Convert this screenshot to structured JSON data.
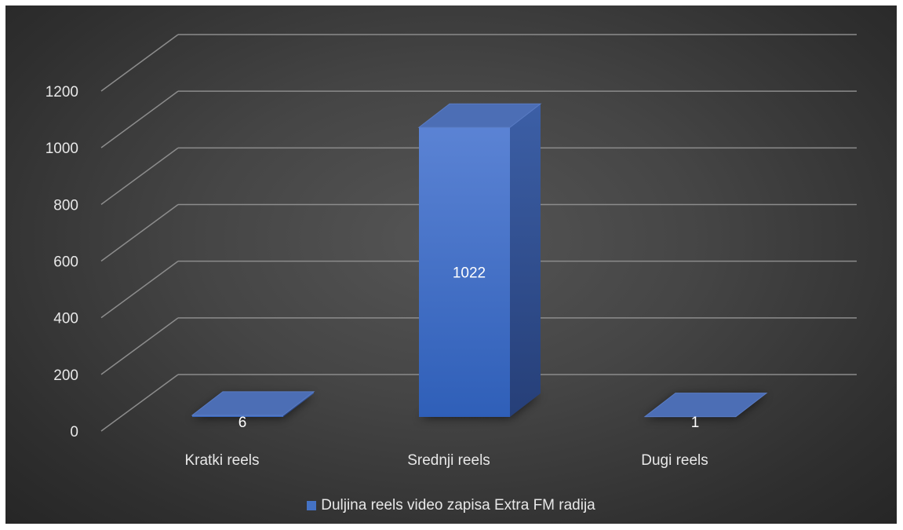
{
  "chart_data": {
    "type": "bar",
    "categories": [
      "Kratki reels",
      "Srednji reels",
      "Dugi reels"
    ],
    "series": [
      {
        "name": "Duljina reels video zapisa Extra FM radija",
        "values": [
          6,
          1022,
          1
        ]
      }
    ],
    "ylim": [
      0,
      1200
    ],
    "yticks": [
      "0",
      "200",
      "400",
      "600",
      "800",
      "1000",
      "1200"
    ],
    "data_labels": [
      "6",
      "1022",
      "1"
    ],
    "grid": true,
    "legend_position": "bottom",
    "style": "3d-column",
    "colors": {
      "bar": "#4472c4",
      "grid": "#8c8c8c",
      "text": "#e8e8e8"
    }
  }
}
